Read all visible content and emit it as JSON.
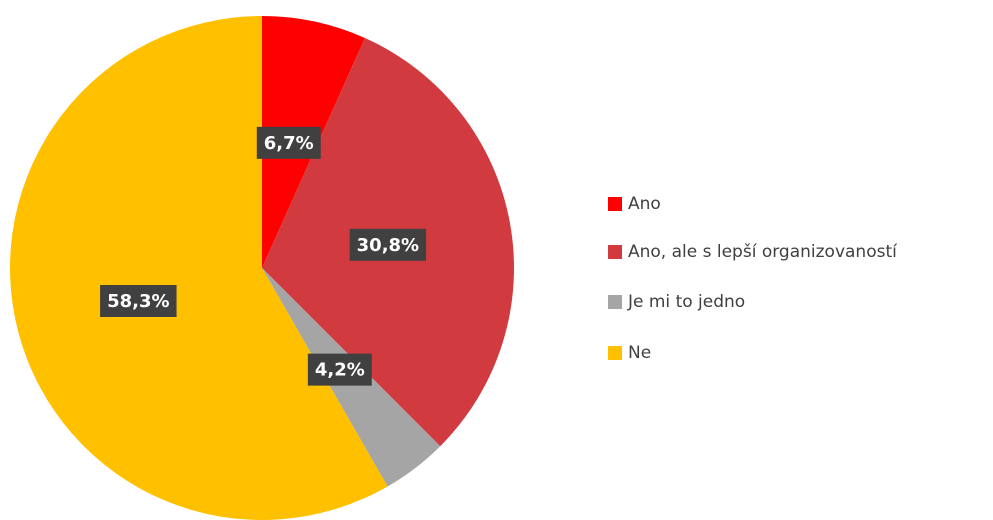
{
  "chart_data": {
    "type": "pie",
    "categories": [
      "Ano",
      "Ano, ale s lepší organizovaností",
      "Je mi to jedno",
      "Ne"
    ],
    "values": [
      6.7,
      30.8,
      4.2,
      58.3
    ],
    "value_labels": [
      "6,7%",
      "30,8%",
      "4,2%",
      "58,3%"
    ],
    "colors": [
      "#ff0000",
      "#d13b40",
      "#a5a5a5",
      "#ffc000"
    ],
    "legend": "right"
  }
}
